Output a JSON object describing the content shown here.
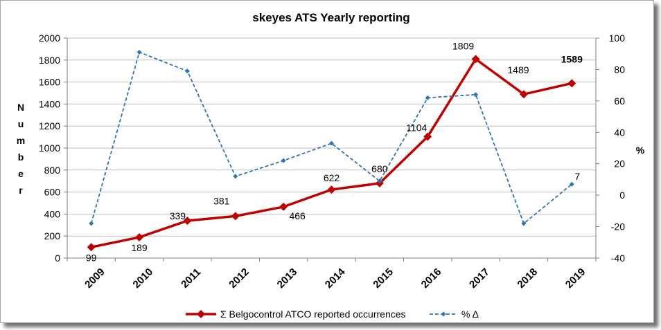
{
  "chart_data": {
    "type": "line",
    "title": "skeyes ATS Yearly reporting",
    "x": [
      "2009",
      "2010",
      "2011",
      "2012",
      "2013",
      "2014",
      "2015",
      "2016",
      "2017",
      "2018",
      "2019"
    ],
    "ylabel": "Number",
    "ylabel_right": "%",
    "ylim": [
      0,
      2000
    ],
    "ylim_right": [
      -40,
      100
    ],
    "yticks": [
      "0",
      "200",
      "400",
      "600",
      "800",
      "1000",
      "1200",
      "1400",
      "1600",
      "1800",
      "2000"
    ],
    "yticks_right": [
      "-40",
      "-20",
      "0",
      "20",
      "40",
      "60",
      "80",
      "100"
    ],
    "grid": true,
    "legend_position": "bottom",
    "series": [
      {
        "name": "Σ Belgocontrol ATCO reported occurrences",
        "axis": "left",
        "color": "#c00000",
        "style": "solid",
        "marker": "diamond",
        "values": [
          99,
          189,
          339,
          381,
          466,
          622,
          680,
          1104,
          1809,
          1489,
          1589
        ],
        "labels": [
          "99",
          "189",
          "339",
          "381",
          "466",
          "622",
          "680",
          "1104",
          "1809",
          "1489",
          "1589"
        ],
        "highlight": {
          "index": 10,
          "color": "#ff0000"
        }
      },
      {
        "name": "% Δ",
        "axis": "right",
        "color": "#2e75b6",
        "style": "dashed",
        "marker": "diamond",
        "values": [
          -18,
          91,
          79,
          12,
          22,
          33,
          9,
          62,
          64,
          -18,
          7
        ],
        "labels": [
          "",
          "",
          "",
          "",
          "",
          "",
          "",
          "",
          "",
          "",
          "7"
        ]
      }
    ]
  }
}
